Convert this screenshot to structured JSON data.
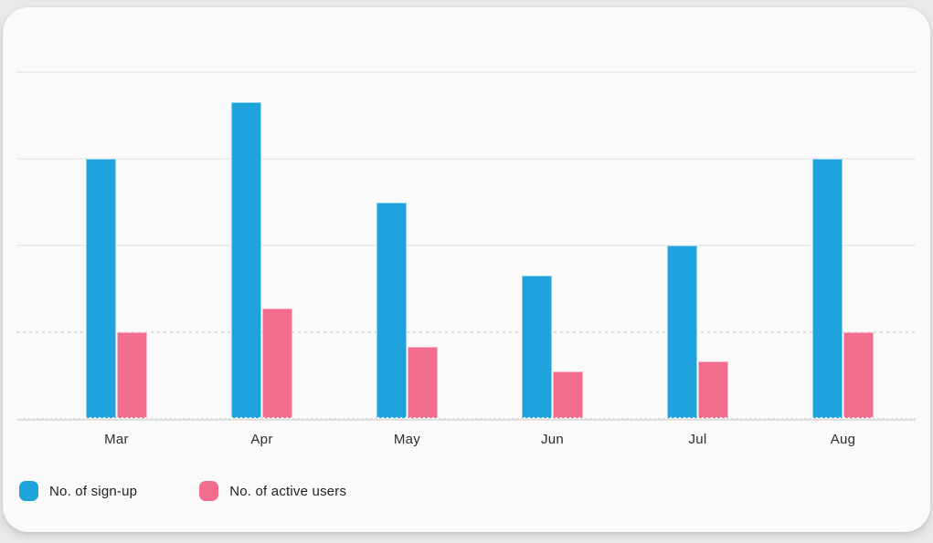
{
  "chart_data": {
    "type": "bar",
    "title": "",
    "xlabel": "",
    "ylabel": "",
    "categories": [
      "Mar",
      "Apr",
      "May",
      "Jun",
      "Jul",
      "Aug"
    ],
    "series": [
      {
        "name": "No. of sign-up",
        "color": "#1fa3dc",
        "values": [
          300,
          365,
          250,
          165,
          200,
          300
        ]
      },
      {
        "name": "No. of active users",
        "color": "#f26d8d",
        "values": [
          100,
          127,
          83,
          55,
          66,
          100
        ]
      }
    ],
    "ylim": [
      0,
      400
    ],
    "gridline_step": 100,
    "dotted_gridline_at": 100,
    "y_axis_labels_visible": false,
    "grid": true,
    "legend_position": "bottom-left"
  },
  "legend": [
    {
      "label": "No. of sign-up",
      "color": "#1fa3dc"
    },
    {
      "label": "No. of active users",
      "color": "#f26d8d"
    }
  ],
  "colors": {
    "signup_blue": "#1fa3dc",
    "active_pink": "#f26d8d",
    "card_background": "#fafafa",
    "page_background": "#e9e9e9",
    "gridline": "#ededed",
    "axis_baseline": "#e0e0e0",
    "axis_label_text": "#2d2d2d"
  }
}
